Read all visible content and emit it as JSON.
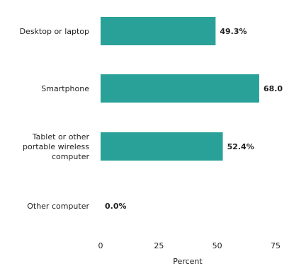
{
  "chart_data": {
    "type": "bar",
    "orientation": "horizontal",
    "categories": [
      "Desktop or laptop",
      "Smartphone",
      "Tablet or other portable wireless computer",
      "Other computer"
    ],
    "category_lines": [
      [
        "Desktop or laptop"
      ],
      [
        "Smartphone"
      ],
      [
        "Tablet or other",
        "portable wireless",
        "computer"
      ],
      [
        "Other computer"
      ]
    ],
    "values": [
      49.3,
      68.0,
      52.4,
      0.0
    ],
    "value_labels": [
      "49.3%",
      "68.0",
      "52.4%",
      "0.0%"
    ],
    "xlabel": "Percent",
    "ylabel": "",
    "xlim": [
      0,
      75
    ],
    "xticks": [
      "0",
      "25",
      "50",
      "75"
    ],
    "grid": false,
    "legend": "none",
    "bar_color": "#2aa198"
  }
}
